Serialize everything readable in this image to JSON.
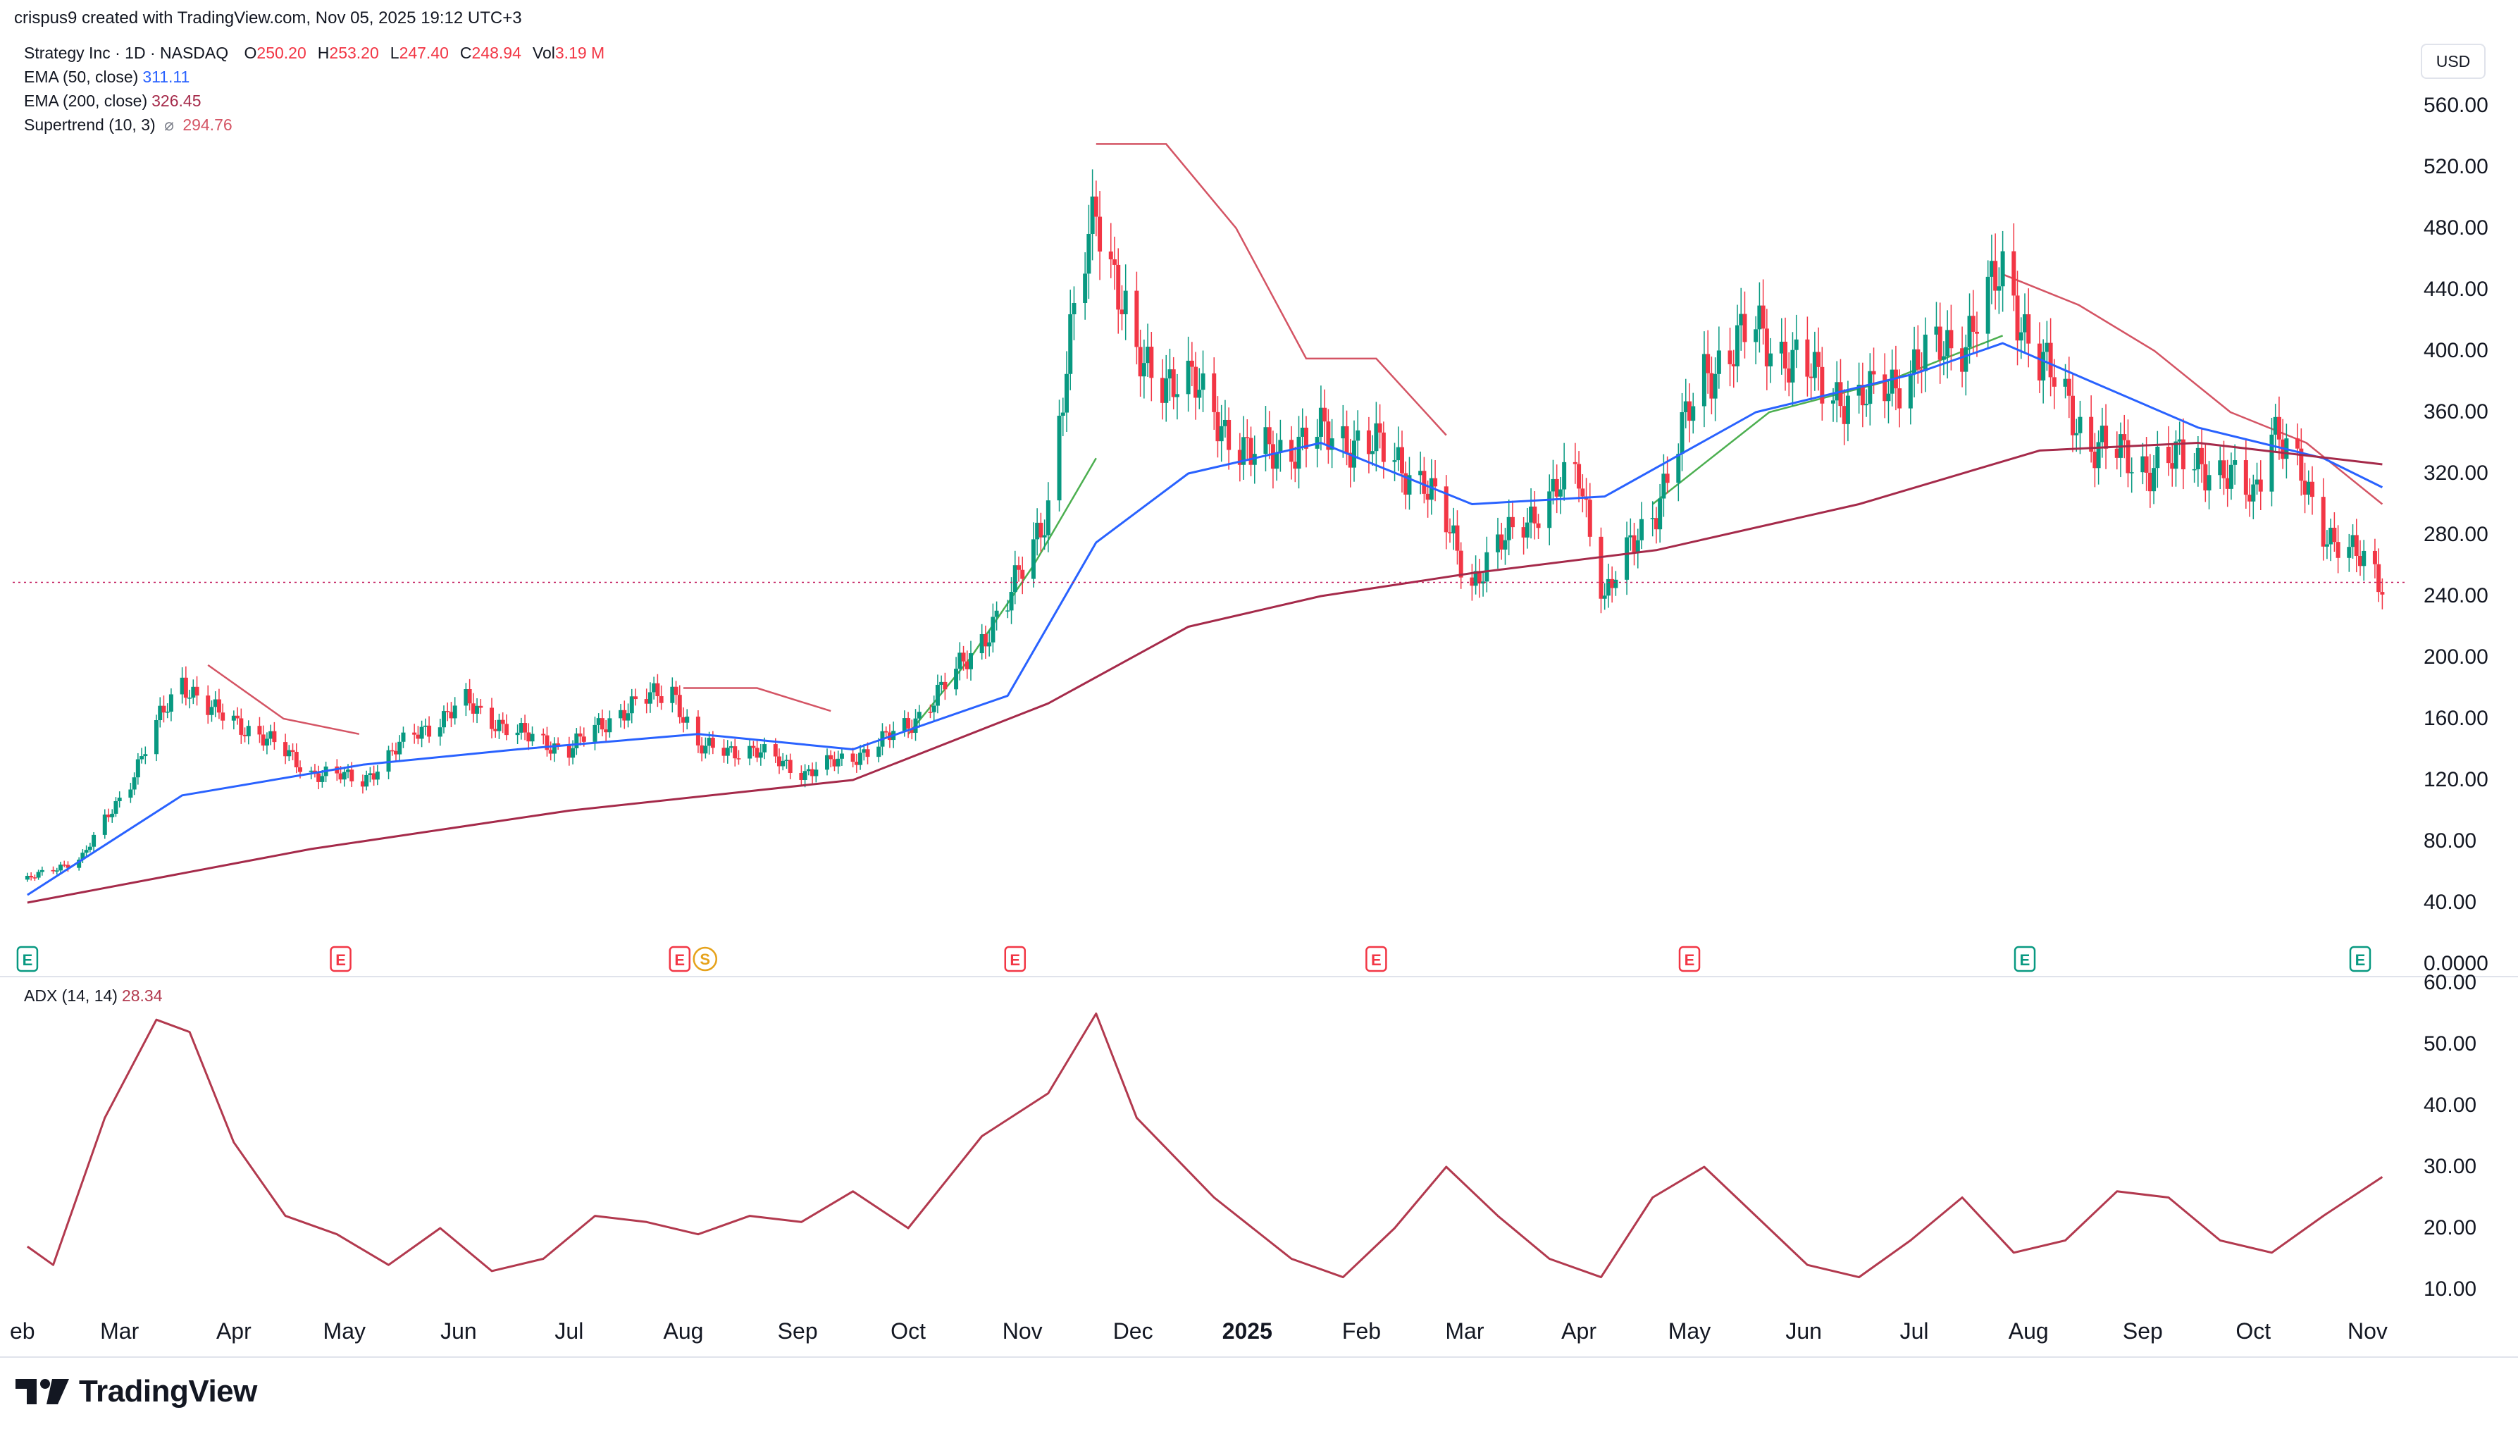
{
  "header": {
    "attribution": "crispus9 created with TradingView.com, Nov 05, 2025 19:12 UTC+3"
  },
  "legend": {
    "symbol": "Strategy Inc · 1D · NASDAQ",
    "ohlc": [
      {
        "label": "O",
        "value": "250.20"
      },
      {
        "label": "H",
        "value": "253.20"
      },
      {
        "label": "L",
        "value": "247.40"
      },
      {
        "label": "C",
        "value": "248.94"
      },
      {
        "label": "Vol",
        "value": "3.19 M"
      }
    ],
    "ema50": {
      "label": "EMA (50, close)",
      "value": "311.11"
    },
    "ema200": {
      "label": "EMA (200, close)",
      "value": "326.45"
    },
    "supertrend": {
      "label": "Supertrend (10, 3)",
      "symbol": "⌀",
      "value": "294.76"
    },
    "adx": {
      "label": "ADX (14, 14)",
      "value": "28.34"
    }
  },
  "currency": "USD",
  "brand": "TradingView",
  "colors": {
    "up": "#089981",
    "down": "#f23645",
    "ema50": "#2962ff",
    "ema200": "#a52a4a",
    "st_up": "#4caf50",
    "st_down": "#d45464",
    "adx": "#b2394e",
    "price_line": "#c2185b"
  },
  "chart_data": [
    {
      "type": "candlestick",
      "title": "Strategy Inc · 1D · NASDAQ",
      "y_axis_ticks": [
        "560.00",
        "520.00",
        "480.00",
        "440.00",
        "400.00",
        "360.00",
        "320.00",
        "280.00",
        "240.00",
        "200.00",
        "160.00",
        "120.00",
        "80.00",
        "40.00",
        "0.0000"
      ],
      "ylim": [
        0,
        580
      ],
      "x_axis_ticks": [
        "eb",
        "Mar",
        "Apr",
        "May",
        "Jun",
        "Jul",
        "Aug",
        "Sep",
        "Oct",
        "Nov",
        "Dec",
        "2025",
        "Feb",
        "Mar",
        "Apr",
        "May",
        "Jun",
        "Jul",
        "Aug",
        "Sep",
        "Oct",
        "Nov"
      ],
      "last_price": 248.94,
      "close_series": {
        "x": [
          "2024-02-05",
          "2024-02-20",
          "2024-03-04",
          "2024-03-12",
          "2024-03-18",
          "2024-03-26",
          "2024-04-08",
          "2024-04-22",
          "2024-05-06",
          "2024-05-20",
          "2024-06-03",
          "2024-06-17",
          "2024-07-01",
          "2024-07-15",
          "2024-07-29",
          "2024-08-05",
          "2024-08-19",
          "2024-09-03",
          "2024-09-16",
          "2024-10-01",
          "2024-10-14",
          "2024-10-28",
          "2024-11-08",
          "2024-11-15",
          "2024-11-21",
          "2024-12-02",
          "2024-12-16",
          "2025-01-02",
          "2025-01-21",
          "2025-02-03",
          "2025-02-18",
          "2025-03-03",
          "2025-03-17",
          "2025-04-01",
          "2025-04-08",
          "2025-04-22",
          "2025-05-05",
          "2025-05-19",
          "2025-06-02",
          "2025-06-16",
          "2025-07-01",
          "2025-07-15",
          "2025-07-25",
          "2025-08-04",
          "2025-08-18",
          "2025-09-02",
          "2025-09-16",
          "2025-10-01",
          "2025-10-06",
          "2025-10-20",
          "2025-11-05"
        ],
        "y": [
          55,
          70,
          120,
          160,
          185,
          165,
          150,
          125,
          120,
          150,
          170,
          150,
          140,
          165,
          180,
          140,
          140,
          125,
          135,
          155,
          190,
          235,
          300,
          420,
          500,
          390,
          380,
          330,
          345,
          340,
          315,
          250,
          290,
          320,
          240,
          300,
          385,
          415,
          385,
          365,
          390,
          410,
          450,
          395,
          340,
          325,
          330,
          305,
          355,
          285,
          249
        ]
      },
      "series": [
        {
          "name": "EMA (50, close)",
          "x": [
            "2024-02-05",
            "2024-03-18",
            "2024-05-06",
            "2024-06-17",
            "2024-08-05",
            "2024-09-16",
            "2024-10-28",
            "2024-11-21",
            "2024-12-16",
            "2025-01-21",
            "2025-03-03",
            "2025-04-08",
            "2025-05-19",
            "2025-07-01",
            "2025-07-25",
            "2025-08-18",
            "2025-09-16",
            "2025-10-20",
            "2025-11-05"
          ],
          "y": [
            45,
            110,
            130,
            140,
            150,
            140,
            175,
            275,
            320,
            340,
            300,
            305,
            360,
            385,
            405,
            380,
            350,
            330,
            311
          ]
        },
        {
          "name": "EMA (200, close)",
          "x": [
            "2024-02-05",
            "2024-04-22",
            "2024-07-01",
            "2024-09-16",
            "2024-11-08",
            "2024-12-16",
            "2025-01-21",
            "2025-03-03",
            "2025-04-22",
            "2025-06-16",
            "2025-08-04",
            "2025-09-16",
            "2025-11-05"
          ],
          "y": [
            40,
            75,
            100,
            120,
            170,
            220,
            240,
            255,
            270,
            300,
            335,
            340,
            326
          ]
        },
        {
          "name": "Supertrend (10, 3)",
          "last_value": 294.76
        }
      ]
    },
    {
      "type": "line",
      "title": "ADX (14, 14)",
      "y_axis_ticks": [
        "60.00",
        "50.00",
        "40.00",
        "30.00",
        "20.00",
        "10.00"
      ],
      "ylim": [
        6,
        61
      ],
      "series": [
        {
          "name": "ADX (14, 14)",
          "x": [
            "2024-02-05",
            "2024-02-12",
            "2024-02-26",
            "2024-03-11",
            "2024-03-20",
            "2024-04-01",
            "2024-04-15",
            "2024-04-29",
            "2024-05-13",
            "2024-05-27",
            "2024-06-10",
            "2024-06-24",
            "2024-07-08",
            "2024-07-22",
            "2024-08-05",
            "2024-08-19",
            "2024-09-02",
            "2024-09-16",
            "2024-10-01",
            "2024-10-21",
            "2024-11-08",
            "2024-11-21",
            "2024-12-02",
            "2024-12-23",
            "2025-01-13",
            "2025-01-27",
            "2025-02-10",
            "2025-02-24",
            "2025-03-10",
            "2025-03-24",
            "2025-04-07",
            "2025-04-21",
            "2025-05-05",
            "2025-05-19",
            "2025-06-02",
            "2025-06-16",
            "2025-06-30",
            "2025-07-14",
            "2025-07-28",
            "2025-08-11",
            "2025-08-25",
            "2025-09-08",
            "2025-09-22",
            "2025-10-06",
            "2025-10-20",
            "2025-11-05"
          ],
          "y": [
            17,
            14,
            38,
            54,
            52,
            34,
            22,
            19,
            14,
            20,
            13,
            15,
            22,
            21,
            19,
            22,
            21,
            26,
            20,
            35,
            42,
            55,
            38,
            25,
            15,
            12,
            20,
            30,
            22,
            15,
            12,
            25,
            30,
            22,
            14,
            12,
            18,
            25,
            16,
            18,
            26,
            25,
            18,
            16,
            22,
            28.34
          ]
        }
      ]
    }
  ]
}
